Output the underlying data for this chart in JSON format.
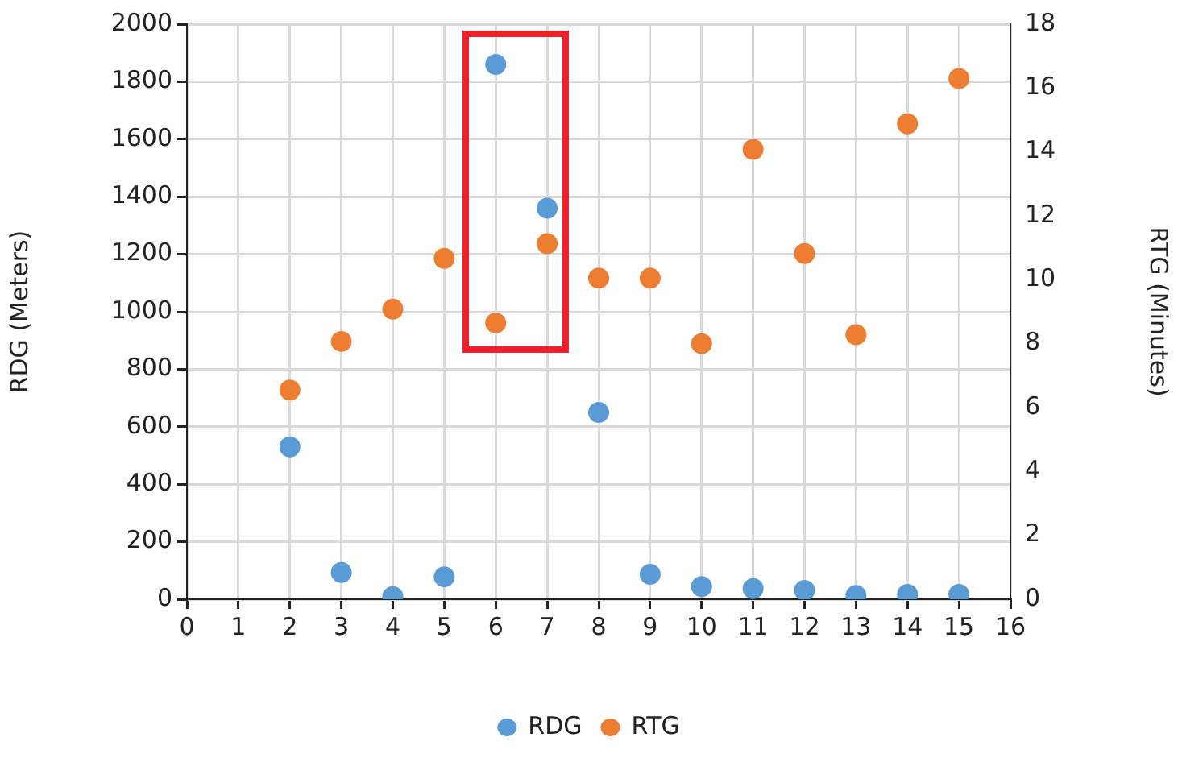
{
  "chart_data": {
    "type": "scatter",
    "ylabel": "RDG (Meters)",
    "y2label": "RTG (Minutes)",
    "x": [
      2,
      3,
      4,
      5,
      6,
      7,
      8,
      9,
      10,
      11,
      12,
      13,
      14,
      15
    ],
    "series": [
      {
        "name": "RDG",
        "color": "#5b9bd5",
        "values": [
          530,
          93,
          9,
          78,
          1860,
          1360,
          650,
          87,
          44,
          37,
          31,
          13,
          17,
          17
        ]
      },
      {
        "name": "RTG",
        "color": "#ed7d31",
        "axis": "y2",
        "values": [
          6.55,
          8.07,
          9.08,
          10.67,
          8.65,
          11.13,
          10.05,
          10.05,
          8.0,
          14.08,
          10.82,
          8.28,
          14.88,
          16.3
        ]
      }
    ],
    "xlim": [
      0,
      16
    ],
    "xticks": [
      0,
      1,
      2,
      3,
      4,
      5,
      6,
      7,
      8,
      9,
      10,
      11,
      12,
      13,
      14,
      15,
      16
    ],
    "ylim": [
      0,
      2000
    ],
    "yticks": [
      0,
      200,
      400,
      600,
      800,
      1000,
      1200,
      1400,
      1600,
      1800,
      2000
    ],
    "y2lim": [
      0,
      18
    ],
    "y2ticks": [
      0,
      2,
      4,
      6,
      8,
      10,
      12,
      14,
      16,
      18
    ],
    "grid": true,
    "legend": "bottom",
    "marker": "circle"
  }
}
